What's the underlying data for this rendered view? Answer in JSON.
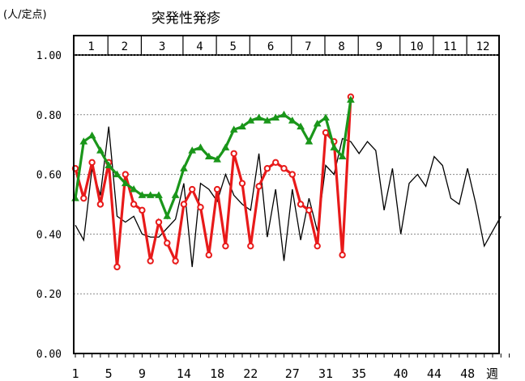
{
  "chart_data": {
    "type": "line",
    "title": "突発性発疹",
    "ylabel": "(人/定点)",
    "xlabel": "週",
    "ylim": [
      0,
      1
    ],
    "xlim": [
      1,
      53
    ],
    "y_ticks": [
      "1.00",
      "0.80",
      "0.60",
      "0.40",
      "0.20",
      "0.00"
    ],
    "y_tick_values": [
      1.0,
      0.8,
      0.6,
      0.4,
      0.2,
      0.0
    ],
    "x_ticks": [
      1,
      5,
      9,
      14,
      18,
      22,
      27,
      31,
      35,
      40,
      44,
      48
    ],
    "x_tick_labels": [
      "1",
      "5",
      "9",
      "14",
      "18",
      "22",
      "27",
      "31",
      "35",
      "40",
      "44",
      "48"
    ],
    "months": [
      {
        "label": "1",
        "start_week": 1
      },
      {
        "label": "2",
        "start_week": 5
      },
      {
        "label": "3",
        "start_week": 9
      },
      {
        "label": "4",
        "start_week": 14
      },
      {
        "label": "5",
        "start_week": 18
      },
      {
        "label": "6",
        "start_week": 22
      },
      {
        "label": "7",
        "start_week": 27
      },
      {
        "label": "8",
        "start_week": 31
      },
      {
        "label": "9",
        "start_week": 35
      },
      {
        "label": "10",
        "start_week": 40
      },
      {
        "label": "11",
        "start_week": 44
      },
      {
        "label": "12",
        "start_week": 48
      }
    ],
    "grid": true,
    "series": [
      {
        "color": "#000000",
        "marker": "none",
        "x": [
          1,
          2,
          3,
          4,
          5,
          6,
          7,
          8,
          9,
          10,
          11,
          12,
          13,
          14,
          15,
          16,
          17,
          18,
          19,
          20,
          21,
          22,
          23,
          24,
          25,
          26,
          27,
          28,
          29,
          30,
          31,
          32,
          33,
          34,
          35,
          36,
          37,
          38,
          39,
          40,
          41,
          42,
          43,
          44,
          45,
          46,
          47,
          48,
          49,
          50,
          51,
          52
        ],
        "values": [
          0.43,
          0.38,
          0.62,
          0.53,
          0.76,
          0.46,
          0.44,
          0.46,
          0.4,
          0.39,
          0.39,
          0.42,
          0.45,
          0.57,
          0.29,
          0.57,
          0.55,
          0.51,
          0.6,
          0.53,
          0.5,
          0.48,
          0.67,
          0.39,
          0.55,
          0.31,
          0.55,
          0.38,
          0.52,
          0.41,
          0.63,
          0.6,
          0.72,
          0.71,
          0.67,
          0.71,
          0.68,
          0.48,
          0.62,
          0.4,
          0.57,
          0.6,
          0.56,
          0.66,
          0.63,
          0.52,
          0.5,
          0.62,
          0.5,
          0.36,
          0.41,
          0.46
        ]
      },
      {
        "color": "#e81a1a",
        "marker": "circle",
        "x": [
          1,
          2,
          3,
          4,
          5,
          6,
          7,
          8,
          9,
          10,
          11,
          12,
          13,
          14,
          15,
          16,
          17,
          18,
          19,
          20,
          21,
          22,
          23,
          24,
          25,
          26,
          27,
          28,
          29,
          30,
          31,
          32,
          33,
          34
        ],
        "values": [
          0.62,
          0.52,
          0.64,
          0.5,
          0.64,
          0.29,
          0.6,
          0.5,
          0.48,
          0.31,
          0.44,
          0.37,
          0.31,
          0.5,
          0.55,
          0.49,
          0.33,
          0.55,
          0.36,
          0.67,
          0.57,
          0.36,
          0.56,
          0.62,
          0.64,
          0.62,
          0.6,
          0.5,
          0.48,
          0.36,
          0.74,
          0.71,
          0.33,
          0.86
        ]
      },
      {
        "color": "#1a961a",
        "marker": "triangle",
        "x": [
          1,
          2,
          3,
          4,
          5,
          6,
          7,
          8,
          9,
          10,
          11,
          12,
          13,
          14,
          15,
          16,
          17,
          18,
          19,
          20,
          21,
          22,
          23,
          24,
          25,
          26,
          27,
          28,
          29,
          30,
          31,
          32,
          33,
          34
        ],
        "values": [
          0.52,
          0.71,
          0.73,
          0.68,
          0.63,
          0.6,
          0.57,
          0.55,
          0.53,
          0.53,
          0.53,
          0.46,
          0.53,
          0.62,
          0.68,
          0.69,
          0.66,
          0.65,
          0.69,
          0.75,
          0.76,
          0.78,
          0.79,
          0.78,
          0.79,
          0.8,
          0.78,
          0.76,
          0.71,
          0.77,
          0.79,
          0.69,
          0.66,
          0.85
        ]
      }
    ]
  }
}
